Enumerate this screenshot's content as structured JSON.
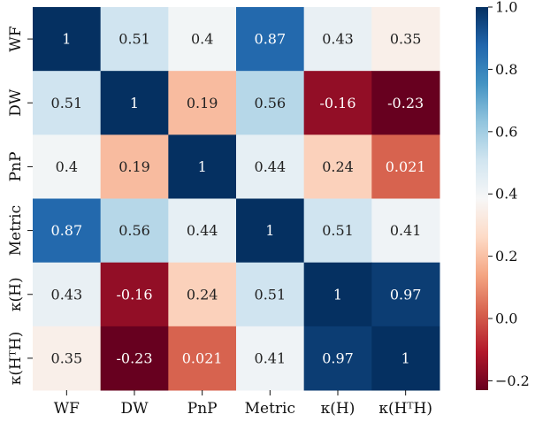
{
  "chart_data": {
    "type": "heatmap",
    "row_labels": [
      "WF",
      "DW",
      "PnP",
      "Metric",
      "κ(H)",
      "κ(HᵀH)"
    ],
    "col_labels": [
      "WF",
      "DW",
      "PnP",
      "Metric",
      "κ(H)",
      "κ(HᵀH)"
    ],
    "values": [
      [
        1,
        0.51,
        0.4,
        0.87,
        0.43,
        0.35
      ],
      [
        0.51,
        1,
        0.19,
        0.56,
        -0.16,
        -0.23
      ],
      [
        0.4,
        0.19,
        1,
        0.44,
        0.24,
        0.021
      ],
      [
        0.87,
        0.56,
        0.44,
        1,
        0.51,
        0.41
      ],
      [
        0.43,
        -0.16,
        0.24,
        0.51,
        1,
        0.97
      ],
      [
        0.35,
        -0.23,
        0.021,
        0.41,
        0.97,
        1
      ]
    ],
    "colormap": "RdBu",
    "vmin": -0.23,
    "vmax": 1.0,
    "colorbar_ticks": [
      "1.0",
      "0.8",
      "0.6",
      "0.4",
      "0.2",
      "0.0",
      "−0.2"
    ],
    "colorbar_tick_values": [
      1.0,
      0.8,
      0.6,
      0.4,
      0.2,
      0.0,
      -0.2
    ]
  }
}
